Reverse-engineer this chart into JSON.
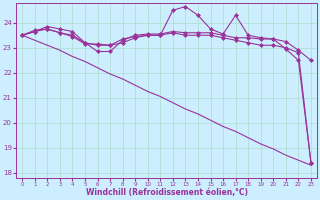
{
  "bg_color": "#cceeff",
  "grid_color": "#aaddcc",
  "line_color": "#993399",
  "marker_color": "#993399",
  "xlabel": "Windchill (Refroidissement éolien,°C)",
  "xlabel_color": "#993399",
  "xlim": [
    -0.5,
    23.5
  ],
  "ylim": [
    17.8,
    24.8
  ],
  "yticks": [
    18,
    19,
    20,
    21,
    22,
    23,
    24
  ],
  "xticks": [
    0,
    1,
    2,
    3,
    4,
    5,
    6,
    7,
    8,
    9,
    10,
    11,
    12,
    13,
    14,
    15,
    16,
    17,
    18,
    19,
    20,
    21,
    22,
    23
  ],
  "series_with_markers": [
    [
      23.5,
      23.65,
      23.85,
      23.75,
      23.65,
      23.2,
      22.85,
      22.85,
      23.3,
      23.5,
      23.55,
      23.55,
      23.65,
      23.6,
      23.6,
      23.6,
      23.5,
      23.4,
      23.4,
      23.35,
      23.35,
      23.25,
      22.9,
      22.5
    ],
    [
      23.5,
      23.65,
      23.75,
      23.6,
      23.5,
      23.2,
      23.1,
      23.1,
      23.35,
      23.45,
      23.5,
      23.5,
      24.5,
      24.65,
      24.3,
      23.75,
      23.55,
      24.3,
      23.5,
      23.4,
      23.35,
      22.95,
      22.5,
      18.4
    ],
    [
      23.5,
      23.7,
      23.75,
      23.6,
      23.45,
      23.15,
      23.15,
      23.1,
      23.2,
      23.4,
      23.5,
      23.5,
      23.6,
      23.5,
      23.5,
      23.5,
      23.4,
      23.3,
      23.2,
      23.1,
      23.1,
      23.0,
      22.8,
      18.4
    ]
  ],
  "series_no_markers": [
    [
      23.5,
      23.3,
      23.1,
      22.9,
      22.65,
      22.45,
      22.2,
      21.95,
      21.75,
      21.5,
      21.25,
      21.05,
      20.8,
      20.55,
      20.35,
      20.1,
      19.85,
      19.65,
      19.4,
      19.15,
      18.95,
      18.7,
      18.5,
      18.3
    ]
  ]
}
